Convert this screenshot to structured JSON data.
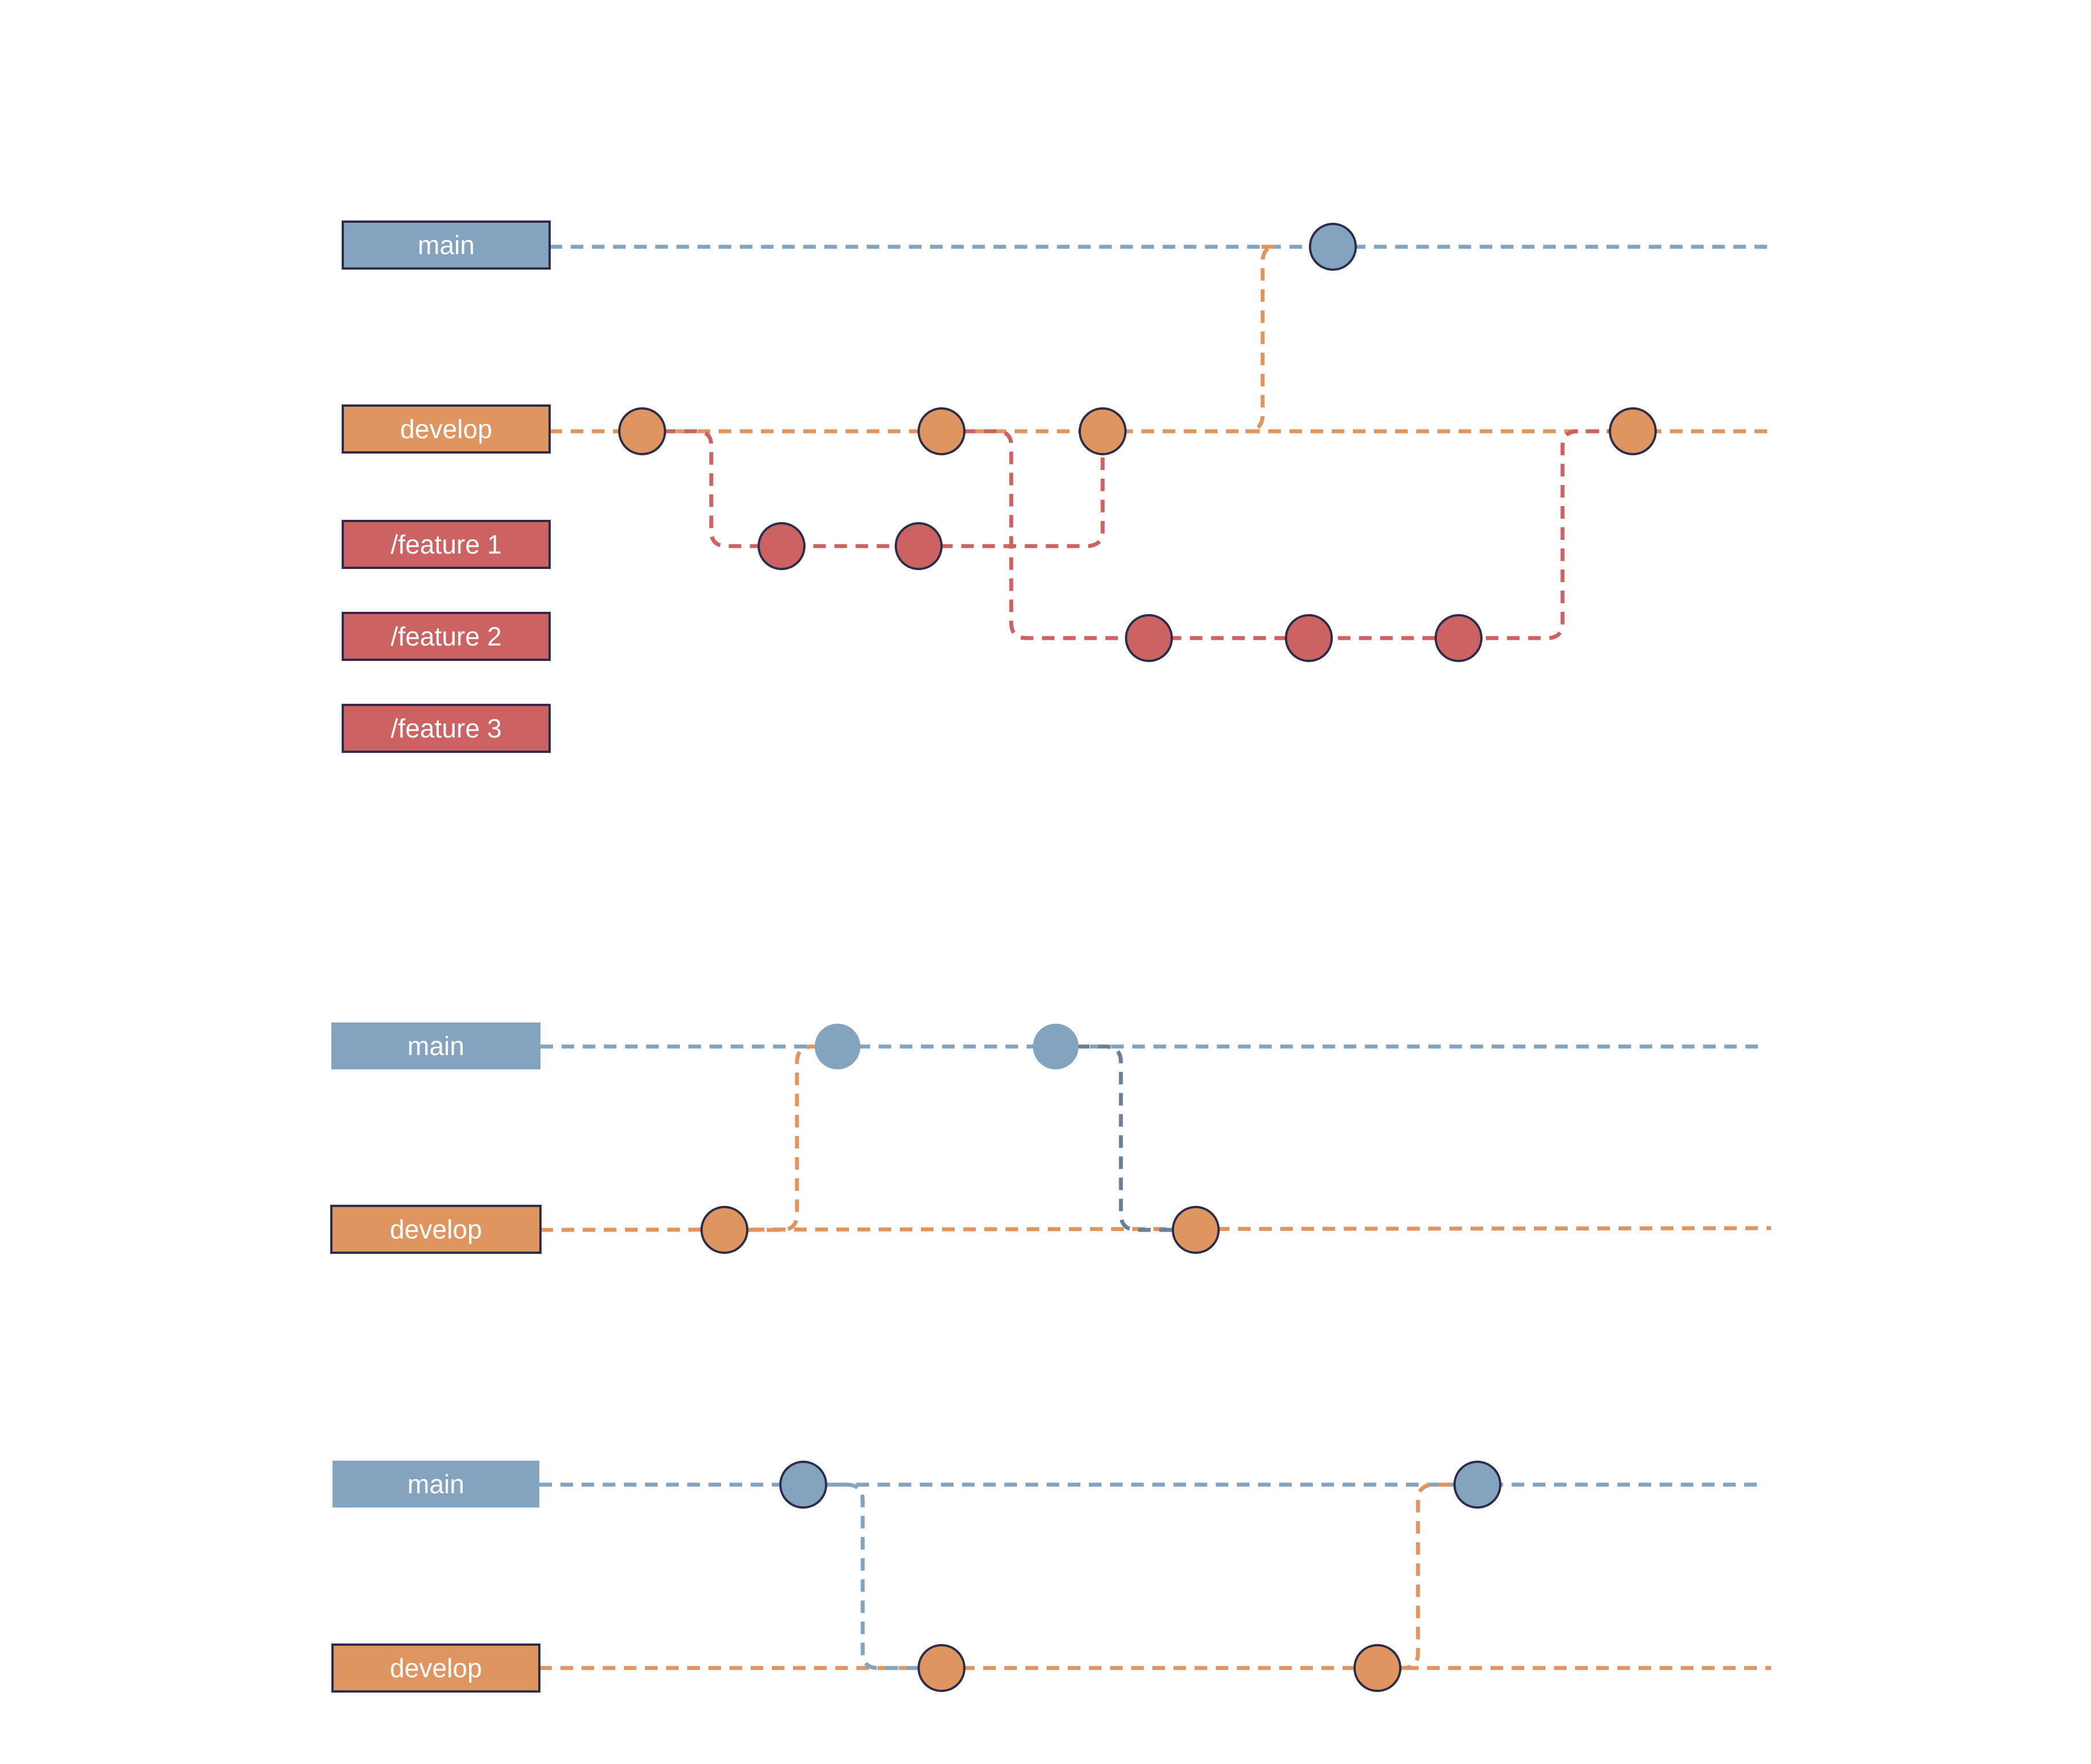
{
  "colors": {
    "main": "#84a3bf",
    "develop": "#df955f",
    "feature": "#cc6262",
    "main_dark": "#6e7f93",
    "outline": "#2b2d4a"
  },
  "diagrams": [
    {
      "id": "gitflow-features",
      "labels": [
        {
          "name": "branch-label-main",
          "text": "main",
          "color": "main"
        },
        {
          "name": "branch-label-develop",
          "text": "develop",
          "color": "develop"
        },
        {
          "name": "branch-label-feature-1",
          "text": "/feature 1",
          "color": "feature"
        },
        {
          "name": "branch-label-feature-2",
          "text": "/feature 2",
          "color": "feature"
        },
        {
          "name": "branch-label-feature-3",
          "text": "/feature 3",
          "color": "feature"
        }
      ],
      "commits": [
        {
          "branch": "main",
          "color": "main"
        },
        {
          "branch": "develop",
          "color": "develop"
        },
        {
          "branch": "develop",
          "color": "develop"
        },
        {
          "branch": "develop",
          "color": "develop"
        },
        {
          "branch": "develop",
          "color": "develop"
        },
        {
          "branch": "feature-1",
          "color": "feature"
        },
        {
          "branch": "feature-1",
          "color": "feature"
        },
        {
          "branch": "feature-2",
          "color": "feature"
        },
        {
          "branch": "feature-2",
          "color": "feature"
        },
        {
          "branch": "feature-2",
          "color": "feature"
        }
      ]
    },
    {
      "id": "main-develop-sync-a",
      "labels": [
        {
          "name": "branch-label-main",
          "text": "main",
          "color": "main"
        },
        {
          "name": "branch-label-develop",
          "text": "develop",
          "color": "develop"
        }
      ],
      "commits": [
        {
          "branch": "main",
          "color": "main"
        },
        {
          "branch": "main",
          "color": "main"
        },
        {
          "branch": "develop",
          "color": "develop"
        },
        {
          "branch": "develop",
          "color": "develop"
        }
      ]
    },
    {
      "id": "main-develop-sync-b",
      "labels": [
        {
          "name": "branch-label-main",
          "text": "main",
          "color": "main"
        },
        {
          "name": "branch-label-develop",
          "text": "develop",
          "color": "develop"
        }
      ],
      "commits": [
        {
          "branch": "main",
          "color": "main"
        },
        {
          "branch": "main",
          "color": "main"
        },
        {
          "branch": "develop",
          "color": "develop"
        },
        {
          "branch": "develop",
          "color": "develop"
        }
      ]
    }
  ]
}
